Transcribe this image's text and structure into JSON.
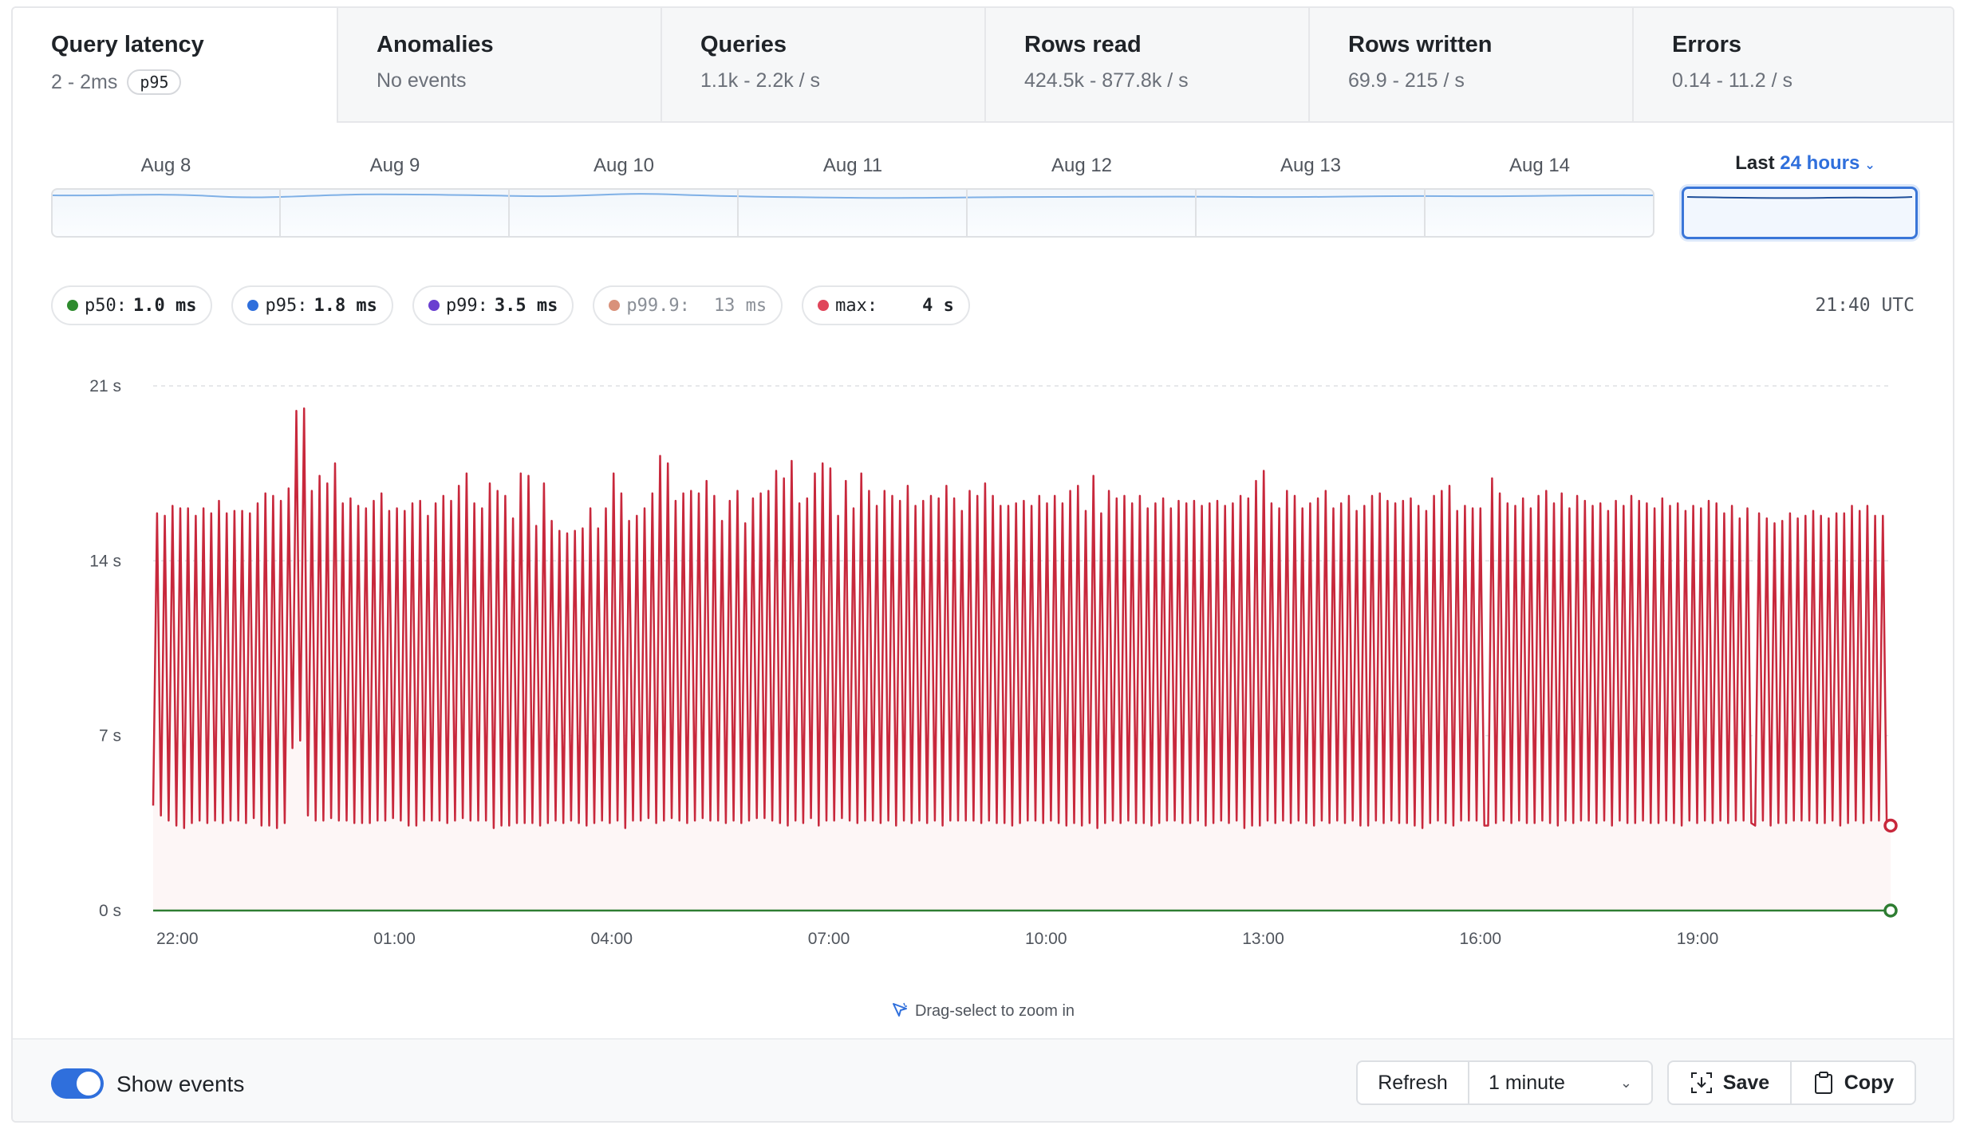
{
  "tabs": [
    {
      "title": "Query latency",
      "sub": "2 - 2ms",
      "badge": "p95",
      "active": true
    },
    {
      "title": "Anomalies",
      "sub": "No events"
    },
    {
      "title": "Queries",
      "sub": "1.1k - 2.2k / s"
    },
    {
      "title": "Rows read",
      "sub": "424.5k - 877.8k / s"
    },
    {
      "title": "Rows written",
      "sub": "69.9 - 215 / s"
    },
    {
      "title": "Errors",
      "sub": "0.14 - 11.2 / s"
    }
  ],
  "timeline": {
    "days": [
      "Aug 8",
      "Aug 9",
      "Aug 10",
      "Aug 11",
      "Aug 12",
      "Aug 13",
      "Aug 14"
    ],
    "range_prefix": "Last",
    "range_accent": "24 hours"
  },
  "legend": [
    {
      "label": "p50:",
      "value": "1.0 ms",
      "color": "#2e8b2e"
    },
    {
      "label": "p95:",
      "value": "1.8 ms",
      "color": "#2f6fdc"
    },
    {
      "label": "p99:",
      "value": "3.5 ms",
      "color": "#6a3fd0"
    },
    {
      "label": "p99.9:",
      "value": "13 ms",
      "color": "#d9917a",
      "dim": true
    },
    {
      "label": "max:",
      "value": "4 s",
      "color": "#e0455a"
    }
  ],
  "time_readout": "21:40 UTC",
  "chart_data": {
    "type": "line",
    "ylim": [
      0,
      21
    ],
    "yticks": [
      {
        "value": 0,
        "label": "0 s"
      },
      {
        "value": 7,
        "label": "7 s"
      },
      {
        "value": 14,
        "label": "14 s"
      },
      {
        "value": 21,
        "label": "21 s"
      }
    ],
    "xlim": [
      "21:40",
      "21:40 (+24h)"
    ],
    "xticks": [
      "22:00",
      "01:00",
      "04:00",
      "07:00",
      "10:00",
      "13:00",
      "16:00",
      "19:00"
    ],
    "series": [
      {
        "name": "max",
        "color": "#c8283c",
        "values": [
          4.2,
          15.9,
          3.8,
          15.8,
          3.6,
          16.2,
          3.4,
          16.1,
          3.3,
          16.1,
          3.5,
          15.8,
          3.6,
          16.1,
          3.5,
          15.9,
          3.6,
          16.4,
          3.5,
          15.9,
          3.6,
          16.0,
          3.6,
          16.0,
          3.5,
          15.9,
          3.7,
          16.3,
          3.4,
          16.7,
          3.4,
          16.6,
          3.3,
          16.4,
          3.5,
          16.9,
          6.5,
          20.0,
          6.8,
          20.1,
          3.8,
          16.8,
          3.6,
          17.4,
          3.6,
          17.1,
          3.7,
          17.9,
          3.6,
          16.3,
          3.6,
          16.5,
          3.5,
          16.2,
          3.5,
          16.1,
          3.5,
          16.4,
          3.6,
          16.7,
          3.6,
          16.0,
          3.7,
          16.1,
          3.6,
          16.0,
          3.4,
          16.3,
          3.4,
          16.4,
          3.6,
          15.8,
          3.6,
          16.3,
          3.6,
          16.6,
          3.5,
          16.4,
          3.6,
          17.0,
          3.7,
          17.5,
          3.6,
          16.3,
          3.6,
          16.1,
          3.6,
          17.1,
          3.3,
          16.8,
          3.4,
          16.6,
          3.4,
          15.7,
          3.5,
          17.5,
          3.5,
          17.4,
          3.5,
          15.4,
          3.4,
          17.1,
          3.5,
          15.6,
          3.6,
          15.2,
          3.5,
          15.1,
          3.6,
          15.2,
          3.5,
          15.3,
          3.4,
          16.1,
          3.5,
          15.3,
          3.6,
          16.1,
          3.5,
          17.5,
          3.6,
          16.7,
          3.3,
          15.6,
          3.6,
          15.8,
          3.6,
          16.1,
          3.7,
          16.7,
          3.5,
          18.2,
          3.6,
          17.9,
          3.7,
          16.4,
          3.6,
          16.7,
          3.5,
          16.8,
          3.6,
          16.7,
          3.7,
          17.2,
          3.6,
          16.6,
          3.6,
          15.6,
          3.5,
          16.4,
          3.6,
          16.8,
          3.5,
          15.5,
          3.6,
          16.5,
          3.7,
          16.7,
          3.7,
          16.8,
          3.6,
          17.6,
          3.5,
          17.3,
          3.4,
          18.0,
          3.6,
          16.3,
          3.5,
          16.5,
          3.7,
          17.5,
          3.4,
          17.9,
          3.6,
          17.7,
          3.6,
          15.8,
          3.7,
          17.2,
          3.6,
          16.1,
          3.5,
          17.5,
          3.6,
          16.8,
          3.6,
          16.2,
          3.5,
          16.8,
          3.6,
          16.6,
          3.4,
          16.4,
          3.6,
          17.0,
          3.5,
          16.2,
          3.6,
          16.4,
          3.5,
          16.6,
          3.6,
          16.5,
          3.4,
          17.0,
          3.6,
          16.5,
          3.6,
          16.0,
          3.6,
          16.8,
          3.6,
          16.6,
          3.5,
          17.1,
          3.6,
          16.6,
          3.5,
          16.2,
          3.5,
          16.2,
          3.4,
          16.3,
          3.5,
          16.4,
          3.6,
          16.2,
          3.6,
          16.6,
          3.5,
          16.3,
          3.6,
          16.6,
          3.5,
          16.3,
          3.4,
          16.8,
          3.5,
          17.0,
          3.4,
          16.0,
          3.5,
          17.4,
          3.3,
          15.9,
          3.5,
          16.8,
          3.6,
          16.5,
          3.5,
          16.6,
          3.6,
          16.3,
          3.5,
          16.6,
          3.5,
          16.1,
          3.4,
          16.3,
          3.5,
          16.5,
          3.6,
          16.1,
          3.6,
          16.4,
          3.5,
          16.3,
          3.5,
          16.4,
          3.6,
          16.2,
          3.4,
          16.3,
          3.5,
          16.4,
          3.6,
          16.2,
          3.5,
          16.3,
          3.6,
          16.6,
          3.3,
          16.5,
          3.4,
          17.2,
          3.4,
          17.6,
          3.6,
          16.3,
          3.5,
          16.1,
          3.6,
          16.8,
          3.5,
          16.6,
          3.6,
          16.1,
          3.5,
          16.3,
          3.4,
          16.5,
          3.6,
          16.8,
          3.5,
          16.1,
          3.6,
          16.3,
          3.5,
          16.6,
          3.6,
          16.0,
          3.4,
          16.2,
          3.4,
          16.6,
          3.6,
          16.7,
          3.5,
          16.4,
          3.6,
          16.3,
          3.5,
          16.4,
          3.5,
          16.5,
          3.4,
          16.2,
          3.3,
          16.0,
          3.5,
          16.6,
          3.6,
          16.8,
          3.5,
          17.0,
          3.4,
          16.0,
          3.6,
          16.2,
          3.6,
          16.1,
          3.6,
          16.1,
          3.4,
          3.4,
          17.3,
          3.5,
          16.7,
          3.6,
          16.3,
          3.5,
          16.2,
          3.6,
          16.5,
          3.5,
          16.1,
          3.5,
          16.6,
          3.6,
          16.8,
          3.5,
          16.3,
          3.4,
          16.7,
          3.6,
          16.1,
          3.5,
          16.6,
          3.6,
          16.4,
          3.6,
          16.2,
          3.5,
          16.3,
          3.6,
          16.0,
          3.4,
          16.4,
          3.6,
          16.2,
          3.5,
          16.6,
          3.5,
          16.4,
          3.6,
          16.3,
          3.5,
          16.1,
          3.5,
          16.5,
          3.6,
          16.2,
          3.5,
          16.3,
          3.4,
          16.0,
          3.6,
          16.2,
          3.5,
          16.1,
          3.6,
          16.4,
          3.5,
          16.3,
          3.6,
          15.9,
          3.5,
          16.2,
          3.6,
          15.7,
          3.6,
          16.1,
          3.5,
          3.4,
          15.9,
          3.6,
          15.7,
          3.4,
          15.5,
          3.5,
          15.6,
          3.5,
          15.9,
          3.6,
          15.7,
          3.6,
          15.8,
          3.6,
          16.0,
          3.5,
          15.8,
          3.5,
          15.7,
          3.6,
          15.9,
          3.4,
          15.9,
          3.5,
          16.2,
          3.6,
          16.0,
          3.5,
          16.2,
          3.6,
          15.8,
          3.6,
          15.8,
          3.5,
          3.4
        ],
        "last_value": 3.4
      },
      {
        "name": "p50",
        "color": "#2e7d32",
        "values": [
          0.0,
          0.0
        ],
        "last_value": 0.0
      }
    ]
  },
  "hint": "Drag-select to zoom in",
  "footer": {
    "toggle_label": "Show events",
    "toggle_on": true,
    "refresh_label": "Refresh",
    "interval_value": "1 minute",
    "save_label": "Save",
    "copy_label": "Copy"
  }
}
